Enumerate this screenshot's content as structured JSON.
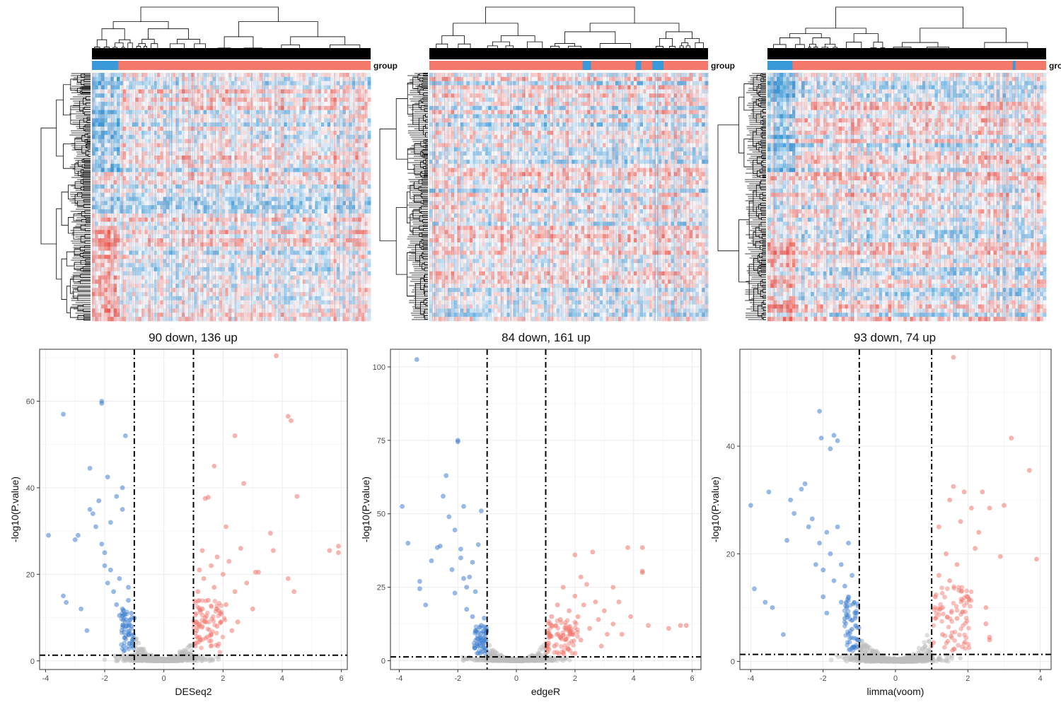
{
  "colors": {
    "down": "#3f7fcf",
    "up": "#f0746a",
    "ns": "#bdbdbd",
    "heat_low": "#3a9ad9",
    "heat_high": "#f05a4f",
    "group_a": "#f4796b",
    "group_b": "#3a9ad9"
  },
  "chart_data": [
    {
      "type": "heatmap",
      "method": "DESeq2",
      "annotation_label": "group",
      "clustered": true
    },
    {
      "type": "heatmap",
      "method": "edgeR",
      "annotation_label": "group",
      "clustered": true
    },
    {
      "type": "heatmap",
      "method": "limma(voom)",
      "annotation_label": "gro",
      "clustered": true
    },
    {
      "type": "scatter",
      "subtype": "volcano",
      "title": "90 down, 136 up",
      "xlabel": "DESeq2",
      "ylabel": "-log10(P.value)",
      "xlim": [
        -4.2,
        6.2
      ],
      "ylim": [
        -2,
        72
      ],
      "xticks": [
        -4,
        -2,
        0,
        2,
        4,
        6
      ],
      "yticks": [
        0,
        20,
        40,
        60
      ],
      "thresholds": {
        "logfc": [
          -1,
          1
        ],
        "p": 1.3
      },
      "down": [
        [
          -3.9,
          29
        ],
        [
          -3.4,
          57
        ],
        [
          -3.4,
          15
        ],
        [
          -3.3,
          13.5
        ],
        [
          -3.0,
          28
        ],
        [
          -2.9,
          29
        ],
        [
          -2.8,
          12
        ],
        [
          -2.6,
          7
        ],
        [
          -2.5,
          44.5
        ],
        [
          -2.5,
          35
        ],
        [
          -2.4,
          34
        ],
        [
          -2.3,
          31
        ],
        [
          -2.2,
          37
        ],
        [
          -2.1,
          60
        ],
        [
          -2.1,
          59.5
        ],
        [
          -2.1,
          27
        ],
        [
          -2.0,
          25
        ],
        [
          -2.0,
          22
        ],
        [
          -1.9,
          42.5
        ],
        [
          -1.9,
          18
        ],
        [
          -1.8,
          32
        ],
        [
          -1.8,
          21
        ],
        [
          -1.7,
          16
        ],
        [
          -1.6,
          38
        ],
        [
          -1.6,
          13
        ],
        [
          -1.5,
          19
        ],
        [
          -1.5,
          10.5
        ],
        [
          -1.4,
          40
        ],
        [
          -1.4,
          35
        ],
        [
          -1.4,
          12
        ],
        [
          -1.3,
          52
        ],
        [
          -1.3,
          9
        ],
        [
          -1.2,
          17
        ],
        [
          -1.2,
          14
        ],
        [
          -1.2,
          6
        ],
        [
          -1.1,
          11
        ],
        [
          -1.1,
          8
        ],
        [
          -1.05,
          5
        ]
      ],
      "up": [
        [
          1.05,
          4
        ],
        [
          1.1,
          7
        ],
        [
          1.1,
          9
        ],
        [
          1.15,
          16
        ],
        [
          1.2,
          21
        ],
        [
          1.2,
          5.5
        ],
        [
          1.3,
          12
        ],
        [
          1.3,
          25.5
        ],
        [
          1.35,
          19
        ],
        [
          1.4,
          37.5
        ],
        [
          1.4,
          10
        ],
        [
          1.5,
          14
        ],
        [
          1.5,
          37.8
        ],
        [
          1.6,
          22
        ],
        [
          1.6,
          6
        ],
        [
          1.7,
          45
        ],
        [
          1.7,
          17
        ],
        [
          1.8,
          8
        ],
        [
          1.8,
          24
        ],
        [
          1.9,
          11
        ],
        [
          2.0,
          20
        ],
        [
          2.1,
          31
        ],
        [
          2.1,
          13
        ],
        [
          2.2,
          23
        ],
        [
          2.3,
          7
        ],
        [
          2.4,
          52
        ],
        [
          2.4,
          16
        ],
        [
          2.5,
          9
        ],
        [
          2.6,
          26
        ],
        [
          2.7,
          41
        ],
        [
          2.8,
          18
        ],
        [
          3.0,
          12
        ],
        [
          3.1,
          20.5
        ],
        [
          3.2,
          20.5
        ],
        [
          3.6,
          29.5
        ],
        [
          3.7,
          25.5
        ],
        [
          3.8,
          70.5
        ],
        [
          4.2,
          56.5
        ],
        [
          4.2,
          19
        ],
        [
          4.3,
          55.5
        ],
        [
          4.4,
          16
        ],
        [
          4.5,
          38
        ],
        [
          5.6,
          25.5
        ],
        [
          5.9,
          26.5
        ],
        [
          5.9,
          25
        ]
      ]
    },
    {
      "type": "scatter",
      "subtype": "volcano",
      "title": "84 down, 161 up",
      "xlabel": "edgeR",
      "ylabel": "-log10(P.value)",
      "xlim": [
        -4.3,
        6.3
      ],
      "ylim": [
        -3,
        106
      ],
      "xticks": [
        -4,
        -2,
        0,
        2,
        4,
        6
      ],
      "yticks": [
        0,
        25,
        50,
        75,
        100
      ],
      "thresholds": {
        "logfc": [
          -1,
          1
        ],
        "p": 1.3
      },
      "down": [
        [
          -3.9,
          52.5
        ],
        [
          -3.7,
          40
        ],
        [
          -3.4,
          102.5
        ],
        [
          -3.3,
          27
        ],
        [
          -3.3,
          24.5
        ],
        [
          -3.1,
          19
        ],
        [
          -2.9,
          34
        ],
        [
          -2.7,
          38.5
        ],
        [
          -2.6,
          39
        ],
        [
          -2.5,
          56
        ],
        [
          -2.4,
          63
        ],
        [
          -2.3,
          49
        ],
        [
          -2.2,
          31
        ],
        [
          -2.1,
          23
        ],
        [
          -2.1,
          44.5
        ],
        [
          -2.0,
          75
        ],
        [
          -2.0,
          74.5
        ],
        [
          -1.9,
          38
        ],
        [
          -1.9,
          35
        ],
        [
          -1.8,
          52.5
        ],
        [
          -1.8,
          28
        ],
        [
          -1.7,
          25
        ],
        [
          -1.7,
          17.5
        ],
        [
          -1.6,
          28.5
        ],
        [
          -1.5,
          33.5
        ],
        [
          -1.5,
          15
        ],
        [
          -1.4,
          23.5
        ],
        [
          -1.4,
          10
        ],
        [
          -1.3,
          39.5
        ],
        [
          -1.2,
          51
        ],
        [
          -1.2,
          12
        ],
        [
          -1.1,
          6
        ],
        [
          -1.1,
          14.5
        ],
        [
          -1.05,
          4
        ]
      ],
      "up": [
        [
          1.05,
          3
        ],
        [
          1.1,
          6
        ],
        [
          1.1,
          9
        ],
        [
          1.2,
          12
        ],
        [
          1.2,
          15
        ],
        [
          1.3,
          5
        ],
        [
          1.4,
          19
        ],
        [
          1.5,
          14
        ],
        [
          1.5,
          8
        ],
        [
          1.6,
          25
        ],
        [
          1.7,
          11
        ],
        [
          1.8,
          17
        ],
        [
          1.9,
          9
        ],
        [
          2.0,
          22
        ],
        [
          2.0,
          36
        ],
        [
          2.1,
          15
        ],
        [
          2.2,
          7
        ],
        [
          2.3,
          19
        ],
        [
          2.4,
          26
        ],
        [
          2.5,
          11
        ],
        [
          2.6,
          37
        ],
        [
          2.7,
          20
        ],
        [
          2.8,
          14
        ],
        [
          2.9,
          5
        ],
        [
          3.0,
          17
        ],
        [
          3.1,
          9
        ],
        [
          3.3,
          25
        ],
        [
          3.3,
          12.5
        ],
        [
          3.5,
          20
        ],
        [
          3.6,
          9
        ],
        [
          3.8,
          38.5
        ],
        [
          4.3,
          38.5
        ],
        [
          4.3,
          30
        ],
        [
          4.3,
          30.5
        ],
        [
          4.5,
          12
        ],
        [
          5.6,
          12
        ],
        [
          5.8,
          12
        ],
        [
          5.2,
          11
        ],
        [
          2.2,
          28.5
        ],
        [
          3.9,
          15
        ]
      ]
    },
    {
      "type": "scatter",
      "subtype": "volcano",
      "title": "93 down, 74 up",
      "xlabel": "limma(voom)",
      "ylabel": "-log10(P.value)",
      "xlim": [
        -4.3,
        4.3
      ],
      "ylim": [
        -1.5,
        58
      ],
      "xticks": [
        -4,
        -2,
        0,
        2,
        4
      ],
      "yticks": [
        0,
        20,
        40
      ],
      "thresholds": {
        "logfc": [
          -1,
          1
        ],
        "p": 1.3
      },
      "down": [
        [
          -4.0,
          29
        ],
        [
          -3.9,
          13.5
        ],
        [
          -3.6,
          11
        ],
        [
          -3.5,
          31.5
        ],
        [
          -3.4,
          10
        ],
        [
          -3.1,
          5
        ],
        [
          -3.0,
          22.5
        ],
        [
          -2.9,
          30
        ],
        [
          -2.8,
          27.5
        ],
        [
          -2.6,
          32
        ],
        [
          -2.5,
          33
        ],
        [
          -2.4,
          25
        ],
        [
          -2.3,
          26.5
        ],
        [
          -2.2,
          18
        ],
        [
          -2.1,
          22
        ],
        [
          -2.1,
          46.5
        ],
        [
          -2.05,
          41.5
        ],
        [
          -2.0,
          17
        ],
        [
          -2.0,
          12
        ],
        [
          -1.9,
          24
        ],
        [
          -1.9,
          9
        ],
        [
          -1.8,
          20
        ],
        [
          -1.8,
          39.5
        ],
        [
          -1.7,
          15
        ],
        [
          -1.7,
          42
        ],
        [
          -1.6,
          41
        ],
        [
          -1.6,
          25
        ],
        [
          -1.5,
          18
        ],
        [
          -1.5,
          11
        ],
        [
          -1.4,
          14
        ],
        [
          -1.4,
          8
        ],
        [
          -1.3,
          22
        ],
        [
          -1.3,
          12
        ],
        [
          -1.2,
          16
        ],
        [
          -1.2,
          6
        ],
        [
          -1.1,
          9
        ],
        [
          -1.05,
          4
        ]
      ],
      "up": [
        [
          1.05,
          3.5
        ],
        [
          1.1,
          8
        ],
        [
          1.1,
          12
        ],
        [
          1.2,
          25
        ],
        [
          1.2,
          16
        ],
        [
          1.3,
          5
        ],
        [
          1.3,
          10
        ],
        [
          1.4,
          20
        ],
        [
          1.5,
          30
        ],
        [
          1.5,
          15
        ],
        [
          1.6,
          32.5
        ],
        [
          1.6,
          56.5
        ],
        [
          1.7,
          18
        ],
        [
          1.7,
          8
        ],
        [
          1.8,
          26
        ],
        [
          1.9,
          31.5
        ],
        [
          2.0,
          12
        ],
        [
          2.1,
          28.5
        ],
        [
          2.2,
          21
        ],
        [
          2.3,
          24
        ],
        [
          2.4,
          31.5
        ],
        [
          2.5,
          10
        ],
        [
          2.5,
          7
        ],
        [
          2.6,
          4
        ],
        [
          2.6,
          4.5
        ],
        [
          2.6,
          28.5
        ],
        [
          2.9,
          19.5
        ],
        [
          3.0,
          29
        ],
        [
          3.2,
          41.5
        ],
        [
          3.7,
          35.5
        ],
        [
          3.9,
          19
        ]
      ]
    }
  ]
}
